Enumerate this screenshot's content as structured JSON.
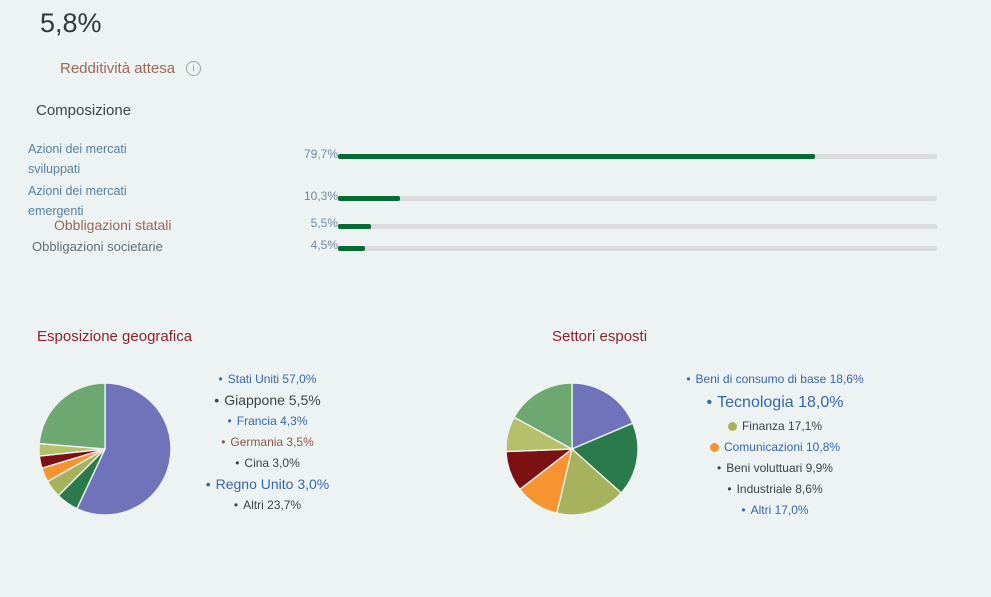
{
  "header": {
    "value": "5,8%",
    "label": "Redditività attesa",
    "info_icon_glyph": "i"
  },
  "composition": {
    "title": "Composizione",
    "bar_color": "#046B32",
    "track_color": "#DADDDB",
    "rows": [
      {
        "label_lines": [
          "Azioni dei mercati",
          "sviluppati"
        ],
        "value": "79,7%",
        "percent": 79.7,
        "style": "blue"
      },
      {
        "label_lines": [
          "Azioni dei mercati",
          "emergenti"
        ],
        "value": "10,3%",
        "percent": 10.3,
        "style": "blue"
      },
      {
        "label_lines": [
          "Obbligazioni statali"
        ],
        "value": "5,5%",
        "percent": 5.5,
        "style": "accent"
      },
      {
        "label_lines": [
          "Obbligazioni societarie"
        ],
        "value": "4,5%",
        "percent": 4.5,
        "style": "gray"
      }
    ]
  },
  "geo": {
    "title": "Esposizione geografica",
    "slices": [
      {
        "label": "Stati Uniti",
        "value": 57.0,
        "color": "#6E73BA"
      },
      {
        "label": "Giappone",
        "value": 5.5,
        "color": "#2B7A4B"
      },
      {
        "label": "Francia",
        "value": 4.3,
        "color": "#A7B35C"
      },
      {
        "label": "Germania",
        "value": 3.5,
        "color": "#F8942F"
      },
      {
        "label": "Cina",
        "value": 3.0,
        "color": "#7C1113"
      },
      {
        "label": "Regno Unito",
        "value": 3.0,
        "color": "#B6BF6A"
      },
      {
        "label": "Altri",
        "value": 23.7,
        "color": "#6CA870"
      }
    ],
    "legend": [
      {
        "text": "Stati Uniti 57,0%",
        "style": "blue",
        "size": "sm"
      },
      {
        "text": "Giappone 5,5%",
        "style": "dark",
        "size": "md"
      },
      {
        "text": "Francia 4,3%",
        "style": "blue",
        "size": "sm"
      },
      {
        "text": "Germania 3,5%",
        "style": "brown",
        "size": "sm"
      },
      {
        "text": "Cina 3,0%",
        "style": "dark",
        "size": "sm"
      },
      {
        "text": "Regno Unito 3,0%",
        "style": "blue",
        "size": "md"
      },
      {
        "text": "Altri 23,7%",
        "style": "dark",
        "size": "sm"
      }
    ]
  },
  "sectors": {
    "title": "Settori esposti",
    "slices": [
      {
        "label": "Beni di consumo di base",
        "value": 18.6,
        "color": "#6E73BA"
      },
      {
        "label": "Tecnologia",
        "value": 18.0,
        "color": "#2B7A4B"
      },
      {
        "label": "Finanza",
        "value": 17.1,
        "color": "#A7B35C"
      },
      {
        "label": "Comunicazioni",
        "value": 10.8,
        "color": "#F8942F"
      },
      {
        "label": "Beni voluttuari",
        "value": 9.9,
        "color": "#7C1113"
      },
      {
        "label": "Industriale",
        "value": 8.6,
        "color": "#B6BF6A"
      },
      {
        "label": "Altri",
        "value": 17.0,
        "color": "#6CA870"
      }
    ],
    "legend": [
      {
        "text": "Beni di consumo di base 18,6%",
        "style": "blue",
        "size": "sm"
      },
      {
        "text": "Tecnologia 18,0%",
        "style": "blue",
        "size": "lg"
      },
      {
        "text": "Finanza 17,1%",
        "style": "dark",
        "size": "sm",
        "dot": true,
        "dot_color": "#A7B35C"
      },
      {
        "text": "Comunicazioni 10,8%",
        "style": "blue",
        "size": "sm",
        "dot": true,
        "dot_color": "#F8942F"
      },
      {
        "text": "Beni voluttuari 9,9%",
        "style": "dark",
        "size": "sm"
      },
      {
        "text": "Industriale 8,6%",
        "style": "dark",
        "size": "sm"
      },
      {
        "text": "Altri 17,0%",
        "style": "blue",
        "size": "sm"
      }
    ]
  },
  "chart_data": [
    {
      "type": "bar",
      "title": "Composizione",
      "categories": [
        "Azioni dei mercati sviluppati",
        "Azioni dei mercati emergenti",
        "Obbligazioni statali",
        "Obbligazioni societarie"
      ],
      "values": [
        79.7,
        10.3,
        5.5,
        4.5
      ],
      "xlabel": "",
      "ylabel": "",
      "unit": "%",
      "xlim": [
        0,
        100
      ],
      "grid": false
    },
    {
      "type": "pie",
      "title": "Esposizione geografica",
      "categories": [
        "Stati Uniti",
        "Giappone",
        "Francia",
        "Germania",
        "Cina",
        "Regno Unito",
        "Altri"
      ],
      "values": [
        57.0,
        5.5,
        4.3,
        3.5,
        3.0,
        3.0,
        23.7
      ],
      "colors": [
        "#6E73BA",
        "#2B7A4B",
        "#A7B35C",
        "#F8942F",
        "#7C1113",
        "#B6BF6A",
        "#6CA870"
      ],
      "legend_position": "right"
    },
    {
      "type": "pie",
      "title": "Settori esposti",
      "categories": [
        "Beni di consumo di base",
        "Tecnologia",
        "Finanza",
        "Comunicazioni",
        "Beni voluttuari",
        "Industriale",
        "Altri"
      ],
      "values": [
        18.6,
        18.0,
        17.1,
        10.8,
        9.9,
        8.6,
        17.0
      ],
      "colors": [
        "#6E73BA",
        "#2B7A4B",
        "#A7B35C",
        "#F8942F",
        "#7C1113",
        "#B6BF6A",
        "#6CA870"
      ],
      "legend_position": "right"
    }
  ]
}
